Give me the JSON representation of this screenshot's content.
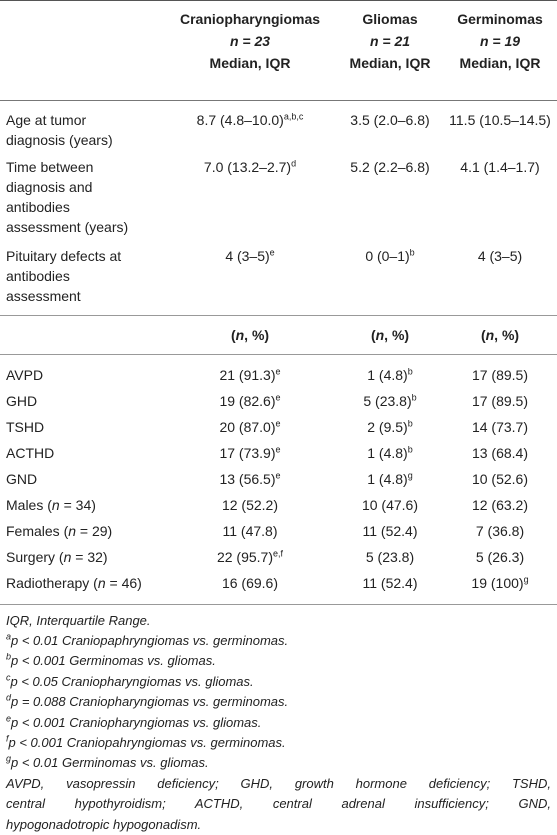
{
  "header": {
    "groups": [
      {
        "name": "Craniopharyngiomas",
        "n": "n = 23",
        "stat": "Median, IQR"
      },
      {
        "name": "Gliomas",
        "n": "n = 21",
        "stat": "Median, IQR"
      },
      {
        "name": "Germinomas",
        "n": "n = 19",
        "stat": "Median, IQR"
      }
    ]
  },
  "median_rows": [
    {
      "label_lines": [
        "Age at tumor",
        "diagnosis (years)"
      ],
      "values": [
        {
          "v": "8.7 (4.8–10.0)",
          "sup": "a,b,c"
        },
        {
          "v": "3.5 (2.0–6.8)",
          "sup": ""
        },
        {
          "v": "11.5 (10.5–14.5)",
          "sup": ""
        }
      ]
    },
    {
      "label_lines": [
        "Time between",
        "diagnosis and",
        "antibodies",
        "assessment (years)"
      ],
      "values": [
        {
          "v": "7.0 (13.2–2.7)",
          "sup": "d"
        },
        {
          "v": "5.2 (2.2–6.8)",
          "sup": ""
        },
        {
          "v": "4.1 (1.4–1.7)",
          "sup": ""
        }
      ]
    },
    {
      "label_lines": [
        "Pituitary defects at",
        "antibodies",
        "assessment"
      ],
      "values": [
        {
          "v": "4 (3–5)",
          "sup": "e"
        },
        {
          "v": "0 (0–1)",
          "sup": "b"
        },
        {
          "v": "4 (3–5)",
          "sup": ""
        }
      ]
    }
  ],
  "subheader": [
    "(n, %)",
    "(n, %)",
    "(n, %)"
  ],
  "count_rows": [
    {
      "label": "AVPD",
      "values": [
        {
          "v": "21 (91.3)",
          "sup": "e"
        },
        {
          "v": "1 (4.8)",
          "sup": "b"
        },
        {
          "v": "17 (89.5)",
          "sup": ""
        }
      ]
    },
    {
      "label": "GHD",
      "values": [
        {
          "v": "19 (82.6)",
          "sup": "e"
        },
        {
          "v": "5 (23.8)",
          "sup": "b"
        },
        {
          "v": "17 (89.5)",
          "sup": ""
        }
      ]
    },
    {
      "label": "TSHD",
      "values": [
        {
          "v": "20 (87.0)",
          "sup": "e"
        },
        {
          "v": "2 (9.5)",
          "sup": "b"
        },
        {
          "v": "14 (73.7)",
          "sup": ""
        }
      ]
    },
    {
      "label": "ACTHD",
      "values": [
        {
          "v": "17 (73.9)",
          "sup": "e"
        },
        {
          "v": "1 (4.8)",
          "sup": "b"
        },
        {
          "v": "13 (68.4)",
          "sup": ""
        }
      ]
    },
    {
      "label": "GND",
      "values": [
        {
          "v": "13 (56.5)",
          "sup": "e"
        },
        {
          "v": "1 (4.8)",
          "sup": "g"
        },
        {
          "v": "10 (52.6)",
          "sup": ""
        }
      ]
    },
    {
      "label": "Males (n = 34)",
      "values": [
        {
          "v": "12 (52.2)",
          "sup": ""
        },
        {
          "v": "10 (47.6)",
          "sup": ""
        },
        {
          "v": "12 (63.2)",
          "sup": ""
        }
      ]
    },
    {
      "label": "Females (n = 29)",
      "values": [
        {
          "v": "11 (47.8)",
          "sup": ""
        },
        {
          "v": "11 (52.4)",
          "sup": ""
        },
        {
          "v": "7 (36.8)",
          "sup": ""
        }
      ]
    },
    {
      "label": "Surgery (n = 32)",
      "values": [
        {
          "v": "22 (95.7)",
          "sup": "e,f"
        },
        {
          "v": "5 (23.8)",
          "sup": ""
        },
        {
          "v": "5 (26.3)",
          "sup": ""
        }
      ]
    },
    {
      "label": "Radiotherapy (n = 46)",
      "values": [
        {
          "v": "16 (69.6)",
          "sup": ""
        },
        {
          "v": "11 (52.4)",
          "sup": ""
        },
        {
          "v": "19 (100)",
          "sup": "g"
        }
      ]
    }
  ],
  "footnotes": {
    "iqr": "IQR, Interquartile Range.",
    "notes": [
      {
        "mark": "a",
        "text": "p < 0.01 Craniopaphryngiomas vs. germinomas."
      },
      {
        "mark": "b",
        "text": "p < 0.001 Germinomas vs. gliomas."
      },
      {
        "mark": "c",
        "text": "p < 0.05 Craniopharyngiomas vs. gliomas."
      },
      {
        "mark": "d",
        "text": "p = 0.088 Craniopharyngiomas vs. germinomas."
      },
      {
        "mark": "e",
        "text": "p < 0.001 Craniopharyngiomas vs. gliomas."
      },
      {
        "mark": "f",
        "text": "p < 0.001 Craniopahryngiomas vs. germinomas."
      },
      {
        "mark": "g",
        "text": "p < 0.01 Germinomas vs. gliomas."
      }
    ],
    "abbrev_lines": [
      "AVPD, vasopressin deficiency; GHD, growth hormone deficiency; TSHD,",
      "central hypothyroidism; ACTHD, central adrenal insufficiency; GND,",
      "hypogonadotropic hypogonadism."
    ]
  }
}
